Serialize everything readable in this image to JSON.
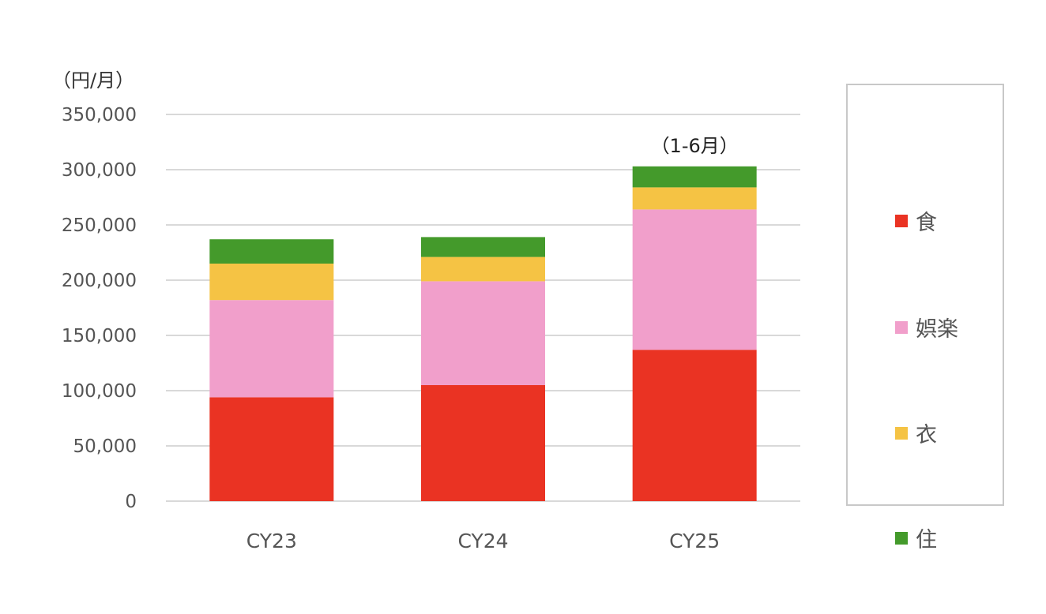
{
  "chart_data": {
    "type": "bar",
    "stacked": true,
    "categories": [
      "CY23",
      "CY24",
      "CY25"
    ],
    "series": [
      {
        "name": "食",
        "color": "#EA3323",
        "values": [
          94000,
          105000,
          137000
        ]
      },
      {
        "name": "娯楽",
        "color": "#F19FCB",
        "values": [
          88000,
          94000,
          127000
        ]
      },
      {
        "name": "衣",
        "color": "#F5C344",
        "values": [
          33000,
          22000,
          20000
        ]
      },
      {
        "name": "住",
        "color": "#449A2B",
        "values": [
          22000,
          18000,
          19000
        ]
      }
    ],
    "ylim": [
      0,
      350000
    ],
    "yticks": [
      "0",
      "50,000",
      "100,000",
      "150,000",
      "200,000",
      "250,000",
      "300,000",
      "350,000"
    ],
    "ylabel": "（円/月）",
    "annotations": [
      {
        "category": "CY25",
        "text": "（1-6月）"
      }
    ],
    "grid": true,
    "legend_position": "right"
  }
}
